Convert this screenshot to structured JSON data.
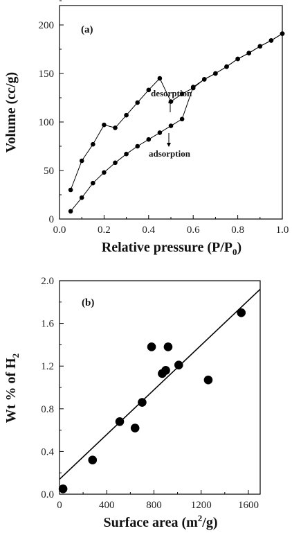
{
  "chart_data": [
    {
      "type": "line",
      "panel_label": "(a)",
      "xlabel": "Relative pressure (P/P",
      "xlabel_sub": "0",
      "xlabel_end": ")",
      "ylabel": "Volume (cc/g)",
      "xlim": [
        0.0,
        1.0
      ],
      "ylim": [
        0,
        220
      ],
      "xticks": [
        "0.0",
        "0.2",
        "0.4",
        "0.6",
        "0.8",
        "1.0"
      ],
      "yticks": [
        "0",
        "50",
        "100",
        "150",
        "200"
      ],
      "series": [
        {
          "name": "adsorption",
          "x": [
            0.05,
            0.1,
            0.15,
            0.2,
            0.25,
            0.3,
            0.35,
            0.4,
            0.45,
            0.5,
            0.55,
            0.6,
            0.65,
            0.7,
            0.75,
            0.8,
            0.85,
            0.9,
            0.95,
            1.0
          ],
          "y": [
            8,
            22,
            37,
            48,
            58,
            67,
            75,
            82,
            89,
            96,
            103,
            136,
            144,
            150,
            157,
            165,
            171,
            178,
            184,
            191
          ]
        },
        {
          "name": "desorption",
          "x": [
            0.05,
            0.1,
            0.15,
            0.2,
            0.25,
            0.3,
            0.35,
            0.4,
            0.45,
            0.5,
            0.55,
            0.6,
            0.65,
            0.7,
            0.75,
            0.8,
            0.85,
            0.9,
            0.95,
            1.0
          ],
          "y": [
            30,
            60,
            77,
            97,
            94,
            107,
            120,
            133,
            145,
            121,
            129,
            135,
            144,
            150,
            157,
            165,
            171,
            178,
            184,
            191
          ]
        }
      ],
      "annotations": [
        {
          "text": "desorption",
          "x": 0.53,
          "y": 158
        },
        {
          "text": "adsorption",
          "x": 0.47,
          "y": 71
        }
      ]
    },
    {
      "type": "scatter",
      "panel_label": "(b)",
      "xlabel": "Surface area (m",
      "xlabel_sup": "2",
      "xlabel_end": "/g)",
      "ylabel": "Wt % of H",
      "ylabel_sub": "2",
      "xlim": [
        0,
        1700
      ],
      "ylim": [
        0.0,
        2.0
      ],
      "xticks": [
        "0",
        "400",
        "800",
        "1200",
        "1600"
      ],
      "yticks": [
        "0.0",
        "0.4",
        "0.8",
        "1.2",
        "1.6",
        "2.0"
      ],
      "points": {
        "x": [
          30,
          280,
          510,
          640,
          700,
          780,
          870,
          900,
          920,
          1010,
          1260,
          1540
        ],
        "y": [
          0.05,
          0.32,
          0.68,
          0.62,
          0.86,
          1.38,
          1.13,
          1.16,
          1.38,
          1.21,
          1.07,
          1.7
        ]
      },
      "fit_line": {
        "x": [
          0,
          1700
        ],
        "y": [
          0.14,
          1.92
        ]
      }
    }
  ]
}
